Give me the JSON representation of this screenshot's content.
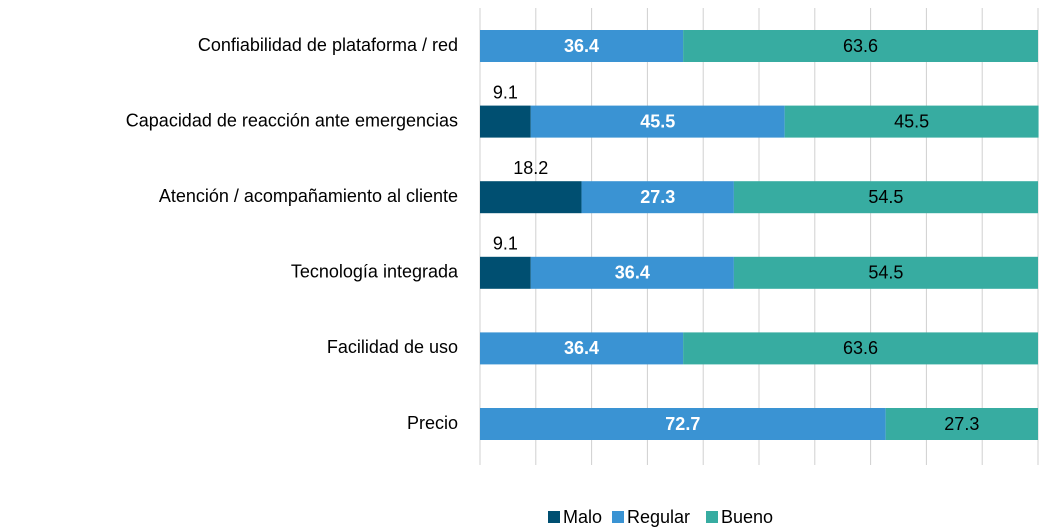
{
  "chart_data": {
    "type": "stacked_bar_horizontal",
    "categories": [
      "Confiabilidad de plataforma / red",
      "Capacidad de reacción ante emergencias",
      "Atención / acompañamiento al cliente",
      "Tecnología integrada",
      "Facilidad de uso",
      "Precio"
    ],
    "series": [
      {
        "name": "Malo",
        "color": "#004f71",
        "values": [
          null,
          9.1,
          18.2,
          9.1,
          null,
          null
        ]
      },
      {
        "name": "Regular",
        "color": "#3a93d3",
        "values": [
          36.4,
          45.5,
          27.3,
          36.4,
          36.4,
          72.7
        ]
      },
      {
        "name": "Bueno",
        "color": "#37aca1",
        "values": [
          63.6,
          45.5,
          54.5,
          54.5,
          63.6,
          27.3
        ]
      }
    ],
    "xlim": [
      0,
      100
    ],
    "xticks": [
      0,
      10,
      20,
      30,
      40,
      50,
      60,
      70,
      80,
      90,
      100
    ],
    "grid": true,
    "legend": "bottom"
  }
}
